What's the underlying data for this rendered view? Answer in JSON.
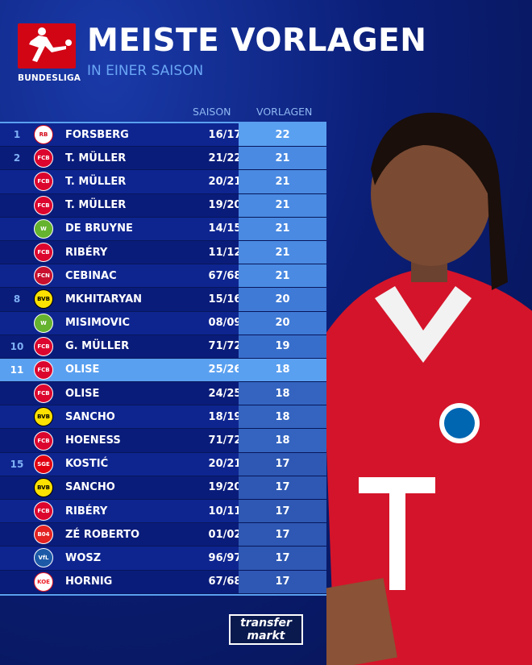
{
  "brand": {
    "league_logo_text": "BUNDESLIGA",
    "league_color": "#d20515",
    "source_logo": [
      "transfer",
      "markt"
    ]
  },
  "header": {
    "title": "MEISTE VORLAGEN",
    "subtitle": "IN EINER SAISON"
  },
  "table": {
    "columns": {
      "season": "SAISON",
      "assists": "VORLAGEN"
    },
    "rows": [
      {
        "rank": "1",
        "club": "RB Leipzig",
        "club_color": "#ffffff",
        "club_fg": "#d20515",
        "club_abbr": "RB",
        "name": "FORSBERG",
        "season": "16/17",
        "assists": "22",
        "cell": "#5aa0f0"
      },
      {
        "rank": "2",
        "club": "FC Bayern",
        "club_color": "#dc052d",
        "club_fg": "#fff",
        "club_abbr": "FCB",
        "name": "T. MÜLLER",
        "season": "21/22",
        "assists": "21",
        "cell": "#4a8ae2"
      },
      {
        "rank": "",
        "club": "FC Bayern",
        "club_color": "#dc052d",
        "club_fg": "#fff",
        "club_abbr": "FCB",
        "name": "T. MÜLLER",
        "season": "20/21",
        "assists": "21",
        "cell": "#4a8ae2"
      },
      {
        "rank": "",
        "club": "FC Bayern",
        "club_color": "#dc052d",
        "club_fg": "#fff",
        "club_abbr": "FCB",
        "name": "T. MÜLLER",
        "season": "19/20",
        "assists": "21",
        "cell": "#4a8ae2"
      },
      {
        "rank": "",
        "club": "VfL Wolfsburg",
        "club_color": "#65b32e",
        "club_fg": "#fff",
        "club_abbr": "W",
        "name": "DE BRUYNE",
        "season": "14/15",
        "assists": "21",
        "cell": "#4a8ae2"
      },
      {
        "rank": "",
        "club": "FC Bayern",
        "club_color": "#dc052d",
        "club_fg": "#fff",
        "club_abbr": "FCB",
        "name": "RIBÉRY",
        "season": "11/12",
        "assists": "21",
        "cell": "#4a8ae2"
      },
      {
        "rank": "",
        "club": "1. FC Nürnberg",
        "club_color": "#c8102e",
        "club_fg": "#fff",
        "club_abbr": "FCN",
        "name": "CEBINAC",
        "season": "67/68",
        "assists": "21",
        "cell": "#4a8ae2"
      },
      {
        "rank": "8",
        "club": "Borussia Dortmund",
        "club_color": "#fde100",
        "club_fg": "#000",
        "club_abbr": "BVB",
        "name": "MKHITARYAN",
        "season": "15/16",
        "assists": "20",
        "cell": "#3f7ad6"
      },
      {
        "rank": "",
        "club": "VfL Wolfsburg",
        "club_color": "#65b32e",
        "club_fg": "#fff",
        "club_abbr": "W",
        "name": "MISIMOVIC",
        "season": "08/09",
        "assists": "20",
        "cell": "#3f7ad6"
      },
      {
        "rank": "10",
        "club": "FC Bayern",
        "club_color": "#dc052d",
        "club_fg": "#fff",
        "club_abbr": "FCB",
        "name": "G. MÜLLER",
        "season": "71/72",
        "assists": "19",
        "cell": "#386ecb"
      },
      {
        "rank": "11",
        "club": "FC Bayern",
        "club_color": "#dc052d",
        "club_fg": "#fff",
        "club_abbr": "FCB",
        "name": "OLISE",
        "season": "25/26",
        "assists": "18",
        "cell": "#5aa0f0",
        "highlight": true
      },
      {
        "rank": "",
        "club": "FC Bayern",
        "club_color": "#dc052d",
        "club_fg": "#fff",
        "club_abbr": "FCB",
        "name": "OLISE",
        "season": "24/25",
        "assists": "18",
        "cell": "#3464c0"
      },
      {
        "rank": "",
        "club": "Borussia Dortmund",
        "club_color": "#fde100",
        "club_fg": "#000",
        "club_abbr": "BVB",
        "name": "SANCHO",
        "season": "18/19",
        "assists": "18",
        "cell": "#3464c0"
      },
      {
        "rank": "",
        "club": "FC Bayern",
        "club_color": "#dc052d",
        "club_fg": "#fff",
        "club_abbr": "FCB",
        "name": "HOENESS",
        "season": "71/72",
        "assists": "18",
        "cell": "#3464c0"
      },
      {
        "rank": "15",
        "club": "Eintracht Frankfurt",
        "club_color": "#e1000f",
        "club_fg": "#fff",
        "club_abbr": "SGE",
        "name": "KOSTIĆ",
        "season": "20/21",
        "assists": "17",
        "cell": "#2e58b3"
      },
      {
        "rank": "",
        "club": "Borussia Dortmund",
        "club_color": "#fde100",
        "club_fg": "#000",
        "club_abbr": "BVB",
        "name": "SANCHO",
        "season": "19/20",
        "assists": "17",
        "cell": "#2e58b3"
      },
      {
        "rank": "",
        "club": "FC Bayern",
        "club_color": "#dc052d",
        "club_fg": "#fff",
        "club_abbr": "FCB",
        "name": "RIBÉRY",
        "season": "10/11",
        "assists": "17",
        "cell": "#2e58b3"
      },
      {
        "rank": "",
        "club": "Bayer Leverkusen",
        "club_color": "#e32221",
        "club_fg": "#fff",
        "club_abbr": "B04",
        "name": "ZÉ ROBERTO",
        "season": "01/02",
        "assists": "17",
        "cell": "#2e58b3"
      },
      {
        "rank": "",
        "club": "VfL Bochum",
        "club_color": "#1c5aa8",
        "club_fg": "#fff",
        "club_abbr": "VfL",
        "name": "WOSZ",
        "season": "96/97",
        "assists": "17",
        "cell": "#2e58b3"
      },
      {
        "rank": "",
        "club": "1. FC Köln",
        "club_color": "#ffffff",
        "club_fg": "#ed1c24",
        "club_abbr": "KOE",
        "name": "HORNIG",
        "season": "67/68",
        "assists": "17",
        "cell": "#2e58b3"
      }
    ]
  }
}
